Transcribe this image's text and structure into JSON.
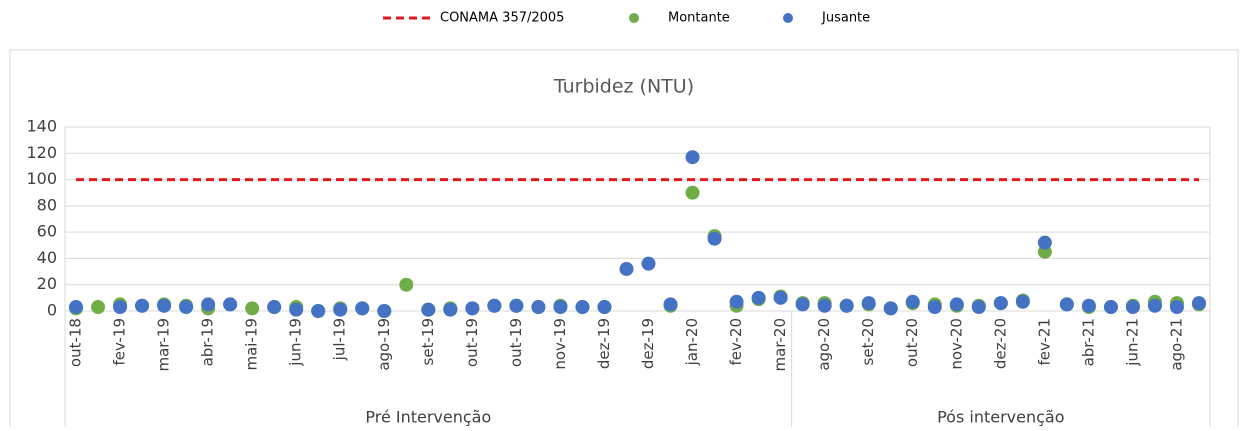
{
  "chart_data": {
    "type": "scatter",
    "title": "Turbidez (NTU)",
    "categories": [
      "out-18",
      null,
      "fev-19",
      null,
      "mar-19",
      null,
      "abr-19",
      null,
      "mai-19",
      null,
      "jun-19",
      null,
      "jul-19",
      null,
      "ago-19",
      null,
      "set-19",
      null,
      "out-19",
      null,
      "out-19",
      null,
      "nov-19",
      null,
      "dez-19",
      null,
      "dez-19",
      null,
      "jan-20",
      null,
      "fev-20",
      null,
      "mar-20",
      null,
      "ago-20",
      null,
      "set-20",
      null,
      "out-20",
      null,
      "nov-20",
      null,
      "dez-20",
      null,
      "fev-21",
      null,
      "abr-21",
      null,
      "jun-21",
      null,
      "ago-21",
      null
    ],
    "groups": [
      {
        "label": "Pré Intervenção",
        "span": 33
      },
      {
        "label": "Pós intervenção",
        "span": 19
      }
    ],
    "series": [
      {
        "name": "Montante",
        "color": "#70ad47",
        "values": [
          2,
          3,
          5,
          4,
          5,
          4,
          2,
          5,
          2,
          3,
          3,
          0,
          2,
          2,
          0,
          20,
          1,
          2,
          2,
          4,
          4,
          3,
          4,
          3,
          3,
          null,
          null,
          4,
          90,
          57,
          4,
          9,
          11,
          6,
          6,
          4,
          5,
          2,
          6,
          5,
          4,
          4,
          6,
          8,
          45,
          5,
          3,
          3,
          4,
          7,
          6,
          5
        ]
      },
      {
        "name": "Jusante",
        "color": "#4472c4",
        "values": [
          3,
          null,
          3,
          4,
          4,
          3,
          5,
          5,
          null,
          3,
          1,
          0,
          1,
          2,
          0,
          null,
          1,
          1,
          2,
          4,
          4,
          3,
          3,
          3,
          3,
          32,
          36,
          5,
          117,
          55,
          7,
          10,
          10,
          5,
          4,
          4,
          6,
          2,
          7,
          3,
          5,
          3,
          6,
          7,
          52,
          5,
          4,
          3,
          3,
          4,
          3,
          6
        ]
      }
    ],
    "reference_line": {
      "name": "CONAMA 357/2005",
      "value": 100,
      "color": "#e31a1c"
    },
    "ylim": [
      0,
      140
    ],
    "yticks": [
      0,
      20,
      40,
      60,
      80,
      100,
      120,
      140
    ],
    "grid": true,
    "legend": "top"
  }
}
